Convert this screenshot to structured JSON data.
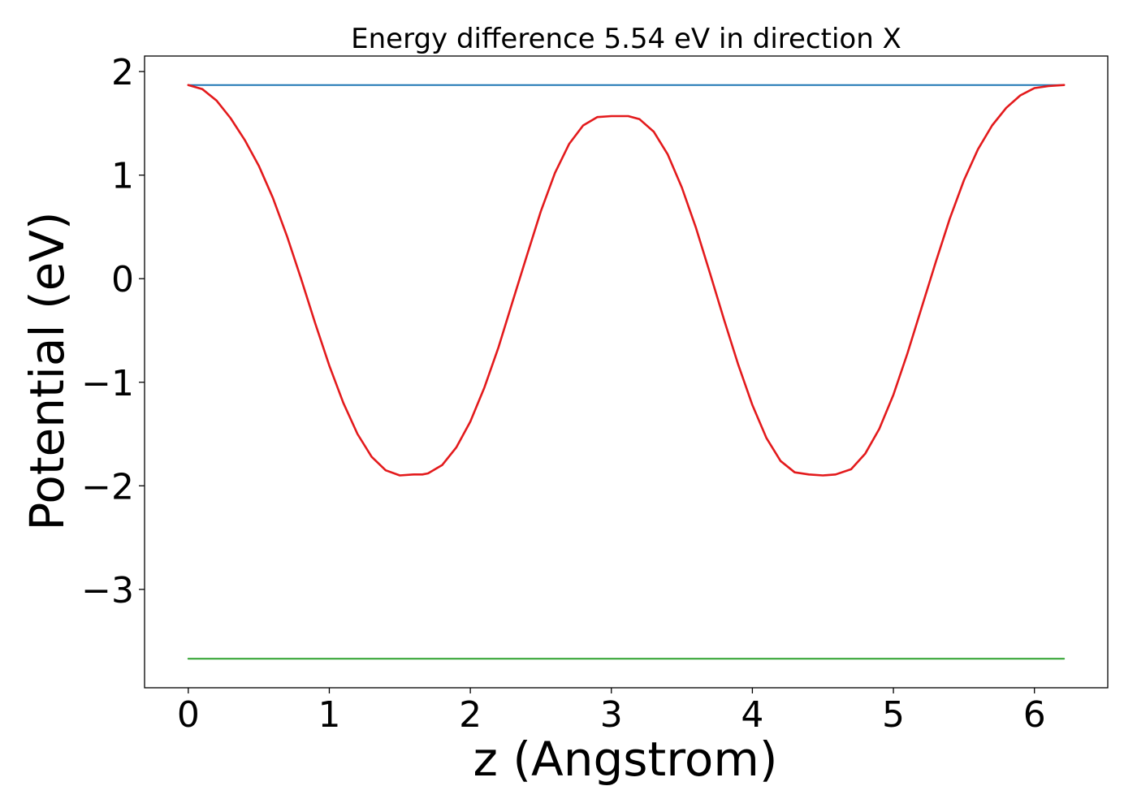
{
  "chart_data": {
    "type": "line",
    "title": "Energy difference 5.54 eV in direction X",
    "xlabel": "z (Angstrom)",
    "ylabel": "Potential (eV)",
    "xlim": [
      -0.31,
      6.52
    ],
    "ylim": [
      -3.95,
      2.15
    ],
    "xticks": [
      0,
      1,
      2,
      3,
      4,
      5,
      6
    ],
    "xtick_labels": [
      "0",
      "1",
      "2",
      "3",
      "4",
      "5",
      "6"
    ],
    "yticks": [
      -3,
      -2,
      -1,
      0,
      1,
      2
    ],
    "ytick_labels": [
      "−3",
      "−2",
      "−1",
      "0",
      "1",
      "2"
    ],
    "grid": false,
    "series": [
      {
        "color": "#1f77b4",
        "x": [
          0,
          6.21
        ],
        "y": [
          1.87,
          1.87
        ]
      },
      {
        "color": "#2ca02c",
        "x": [
          0,
          6.21
        ],
        "y": [
          -3.67,
          -3.67
        ]
      },
      {
        "color": "#e31a1c",
        "x": [
          0,
          0.1,
          0.2,
          0.3,
          0.4,
          0.5,
          0.6,
          0.7,
          0.8,
          0.9,
          1.0,
          1.1,
          1.2,
          1.3,
          1.4,
          1.5,
          1.6,
          1.66,
          1.7,
          1.8,
          1.9,
          2.0,
          2.1,
          2.2,
          2.3,
          2.4,
          2.5,
          2.6,
          2.7,
          2.8,
          2.9,
          3.0,
          3.12,
          3.2,
          3.3,
          3.4,
          3.5,
          3.6,
          3.7,
          3.8,
          3.9,
          4.0,
          4.1,
          4.2,
          4.3,
          4.4,
          4.5,
          4.59,
          4.7,
          4.8,
          4.9,
          5.0,
          5.1,
          5.2,
          5.3,
          5.4,
          5.5,
          5.6,
          5.7,
          5.8,
          5.9,
          6.0,
          6.1,
          6.21
        ],
        "y": [
          1.87,
          1.83,
          1.72,
          1.55,
          1.34,
          1.09,
          0.78,
          0.41,
          0.0,
          -0.43,
          -0.84,
          -1.2,
          -1.5,
          -1.72,
          -1.85,
          -1.9,
          -1.89,
          -1.89,
          -1.88,
          -1.8,
          -1.63,
          -1.38,
          -1.05,
          -0.66,
          -0.22,
          0.22,
          0.65,
          1.02,
          1.3,
          1.48,
          1.56,
          1.57,
          1.57,
          1.54,
          1.42,
          1.2,
          0.88,
          0.49,
          0.05,
          -0.4,
          -0.83,
          -1.22,
          -1.54,
          -1.76,
          -1.87,
          -1.89,
          -1.9,
          -1.89,
          -1.84,
          -1.69,
          -1.45,
          -1.12,
          -0.72,
          -0.28,
          0.16,
          0.58,
          0.95,
          1.25,
          1.48,
          1.65,
          1.77,
          1.84,
          1.86,
          1.87
        ]
      }
    ]
  }
}
